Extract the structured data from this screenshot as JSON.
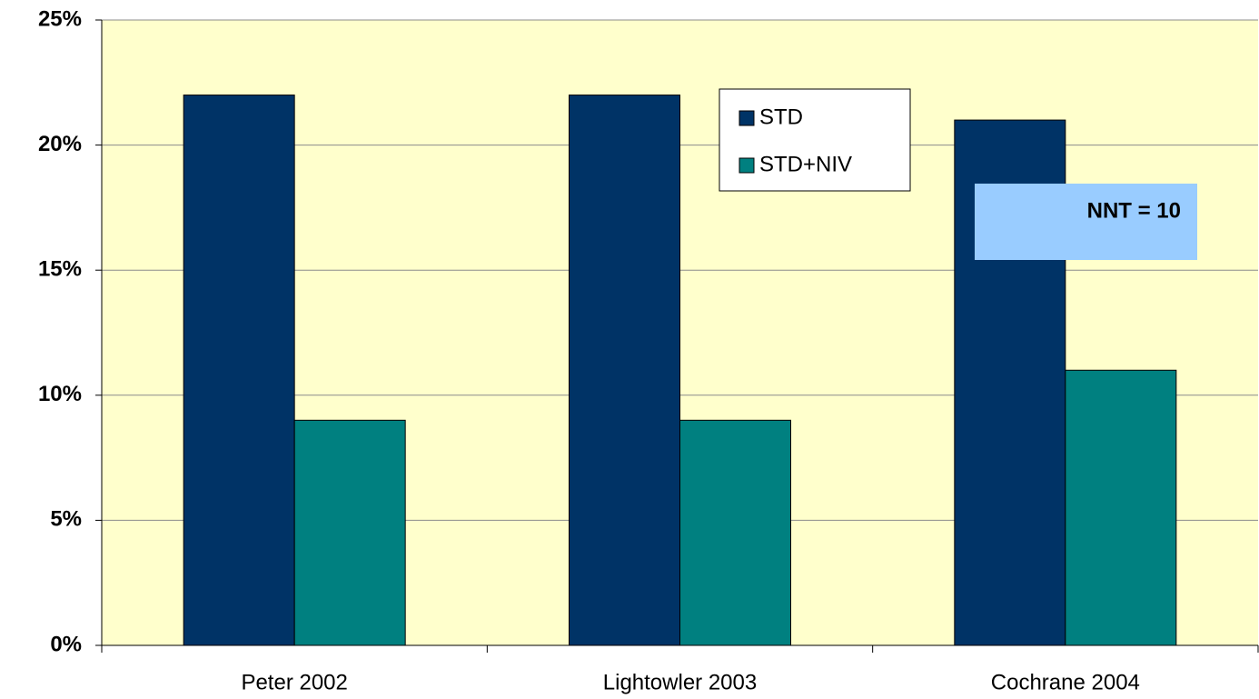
{
  "chart_data": {
    "type": "bar",
    "categories": [
      "Peter 2002",
      "Lightowler 2003",
      "Cochrane 2004"
    ],
    "series": [
      {
        "name": "STD",
        "color": "#003366",
        "values": [
          22,
          22,
          21
        ]
      },
      {
        "name": "STD+NIV",
        "color": "#008080",
        "values": [
          9,
          9,
          11
        ]
      }
    ],
    "ylim": [
      0,
      25
    ],
    "yticks": [
      {
        "value": 0,
        "label": "0%"
      },
      {
        "value": 5,
        "label": "5%"
      },
      {
        "value": 10,
        "label": "10%"
      },
      {
        "value": 15,
        "label": "15%"
      },
      {
        "value": 20,
        "label": "20%"
      },
      {
        "value": 25,
        "label": "25%"
      }
    ],
    "grid": true,
    "annotations": [
      {
        "text": "NNT = 10"
      }
    ]
  }
}
